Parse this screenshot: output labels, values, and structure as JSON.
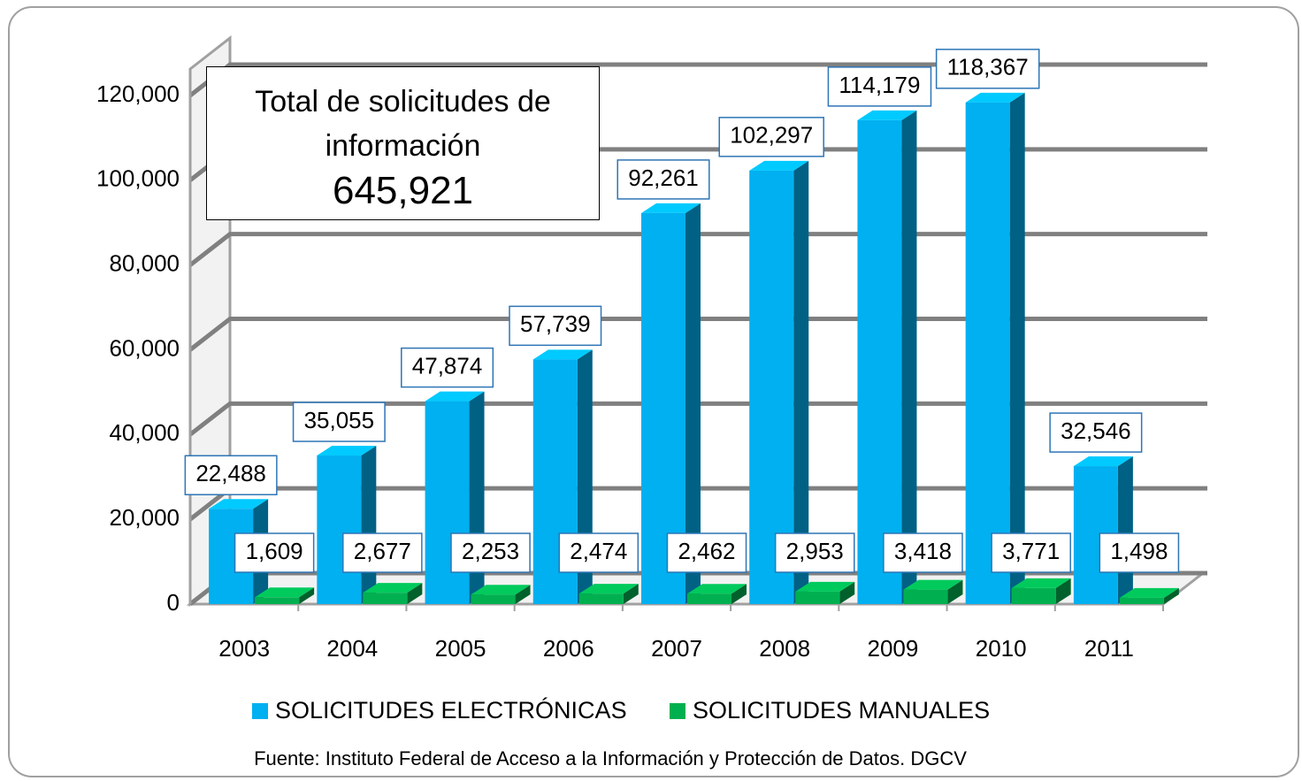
{
  "chart_data": {
    "type": "bar3d",
    "categories": [
      "2003",
      "2004",
      "2005",
      "2006",
      "2007",
      "2008",
      "2009",
      "2010",
      "2011"
    ],
    "series": [
      {
        "name": "SOLICITUDES ELECTRÓNICAS",
        "color": "#00b0f0",
        "values": [
          22488,
          35055,
          47874,
          57739,
          92261,
          102297,
          114179,
          118367,
          32546
        ],
        "value_labels": [
          "22,488",
          "35,055",
          "47,874",
          "57,739",
          "92,261",
          "102,297",
          "114,179",
          "118,367",
          "32,546"
        ]
      },
      {
        "name": "SOLICITUDES MANUALES",
        "color": "#00b050",
        "values": [
          1609,
          2677,
          2253,
          2474,
          2462,
          2953,
          3418,
          3771,
          1498
        ],
        "value_labels": [
          "1,609",
          "2,677",
          "2,253",
          "2,474",
          "2,462",
          "2,953",
          "3,418",
          "3,771",
          "1,498"
        ]
      }
    ],
    "ylim": [
      0,
      120000
    ],
    "yticks": [
      0,
      {
        "value": 20000,
        "label": "20,000"
      },
      {
        "value": 40000,
        "label": "40,000"
      },
      {
        "value": 60000,
        "label": "60,000"
      },
      {
        "value": 80000,
        "label": "80,000"
      },
      {
        "value": 100000,
        "label": "100,000"
      },
      {
        "value": 120000,
        "label": "120,000"
      }
    ],
    "grid": true,
    "annotation": {
      "text": "Total de solicitudes de información",
      "total": "645,921"
    },
    "source": "Fuente: Instituto Federal de Acceso a la Información y Protección de Datos. DGCV"
  }
}
